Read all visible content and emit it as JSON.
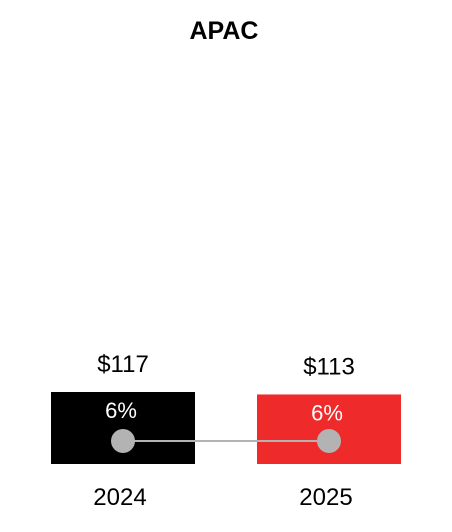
{
  "chart_data": {
    "type": "bar",
    "title": "APAC",
    "categories": [
      "2024",
      "2025"
    ],
    "values": [
      117,
      113
    ],
    "value_labels": [
      "$117",
      "$113"
    ],
    "percent_labels": [
      "6%",
      "6%"
    ],
    "percent_values": [
      6,
      6
    ],
    "colors": [
      "#000000",
      "#ee2a2a"
    ],
    "connector_color": "#b3b3b3",
    "marker_color": "#b3b3b3"
  }
}
